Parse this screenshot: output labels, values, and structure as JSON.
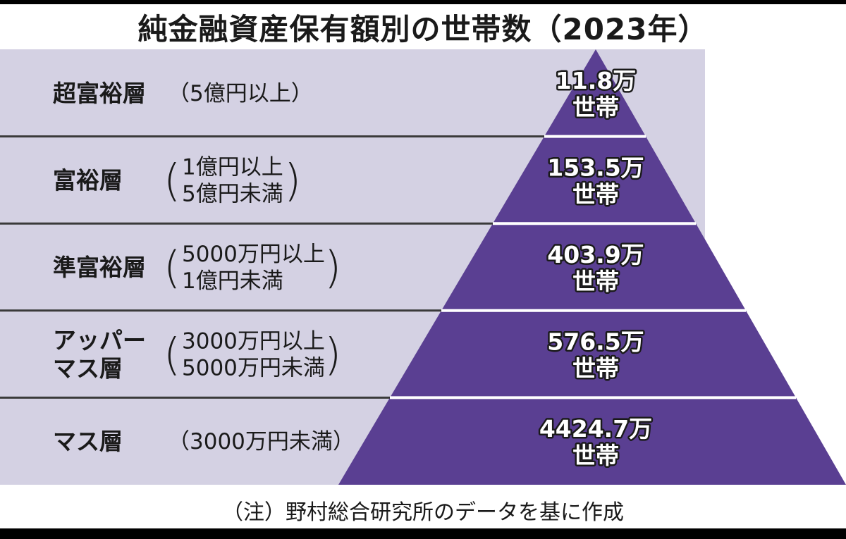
{
  "title": "純金融資産保有額別の世帯数（2023年）",
  "note": "（注）野村総合研究所のデータを基に作成",
  "colors": {
    "background_band": "#d4d1e3",
    "pyramid": "#5a3f92",
    "divider": "#3a3a3a",
    "text": "#1a1a1a",
    "value_text": "#ffffff"
  },
  "chart_data": {
    "type": "pyramid",
    "unit": "万世帯",
    "tiers": [
      {
        "name": "超富裕層",
        "name_lines": [
          "超富裕層"
        ],
        "range_lines": [
          "5億円以上"
        ],
        "value": 11.8,
        "value_line1": "11.8万",
        "value_line2": "世帯"
      },
      {
        "name": "富裕層",
        "name_lines": [
          "富裕層"
        ],
        "range_lines": [
          "1億円以上",
          "5億円未満"
        ],
        "value": 153.5,
        "value_line1": "153.5万",
        "value_line2": "世帯"
      },
      {
        "name": "準富裕層",
        "name_lines": [
          "準富裕層"
        ],
        "range_lines": [
          "5000万円以上",
          "1億円未満"
        ],
        "value": 403.9,
        "value_line1": "403.9万",
        "value_line2": "世帯"
      },
      {
        "name": "アッパーマス層",
        "name_lines": [
          "アッパー",
          "マス層"
        ],
        "range_lines": [
          "3000万円以上",
          "5000万円未満"
        ],
        "value": 576.5,
        "value_line1": "576.5万",
        "value_line2": "世帯"
      },
      {
        "name": "マス層",
        "name_lines": [
          "マス層"
        ],
        "range_lines": [
          "3000万円未満"
        ],
        "value": 4424.7,
        "value_line1": "4424.7万",
        "value_line2": "世帯"
      }
    ]
  }
}
